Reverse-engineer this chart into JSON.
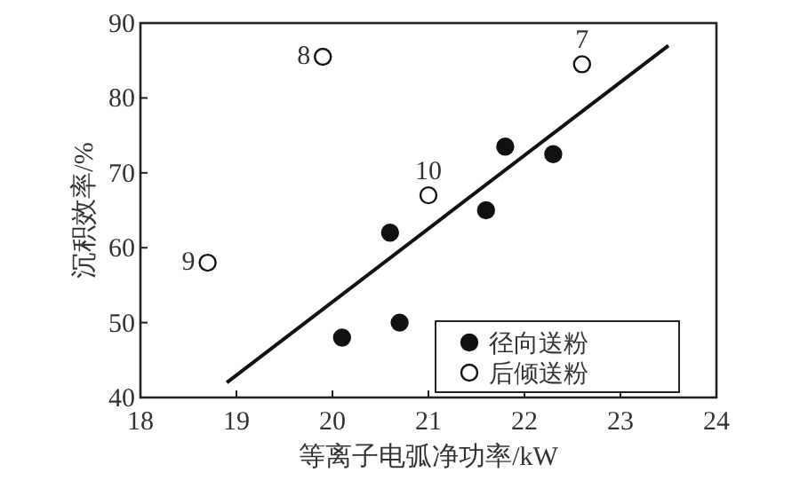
{
  "chart_data": {
    "type": "scatter",
    "xlabel": "等离子电弧净功率/kW",
    "ylabel": "沉积效率/%",
    "xlim": [
      18,
      24
    ],
    "ylim": [
      40,
      90
    ],
    "xticks": [
      18,
      19,
      20,
      21,
      22,
      23,
      24
    ],
    "yticks": [
      40,
      50,
      60,
      70,
      80,
      90
    ],
    "grid": false,
    "legend": "bottom right",
    "series": [
      {
        "name": "径向送粉",
        "color": "#111111",
        "marker": "circle",
        "x": [
          20.1,
          20.6,
          20.7,
          21.6,
          21.8,
          22.3
        ],
        "values": [
          48,
          62,
          50,
          65,
          73.5,
          72.5
        ]
      },
      {
        "name": "后倾送粉",
        "color": "#111111",
        "marker": "circle",
        "x": [
          19.9,
          18.7,
          21.0,
          22.6
        ],
        "values": [
          85.5,
          58,
          67,
          84.5
        ]
      },
      {
        "type": "line",
        "color": "#111111",
        "x": [
          18.9,
          23.5
        ],
        "values": [
          42,
          87
        ]
      }
    ],
    "annotations": [
      {
        "text": "8",
        "x": 19.9,
        "y": 85.5
      },
      {
        "text": "9",
        "x": 18.7,
        "y": 58
      },
      {
        "text": "10",
        "x": 21.0,
        "y": 67
      },
      {
        "text": "7",
        "x": 22.6,
        "y": 84.5
      }
    ]
  }
}
